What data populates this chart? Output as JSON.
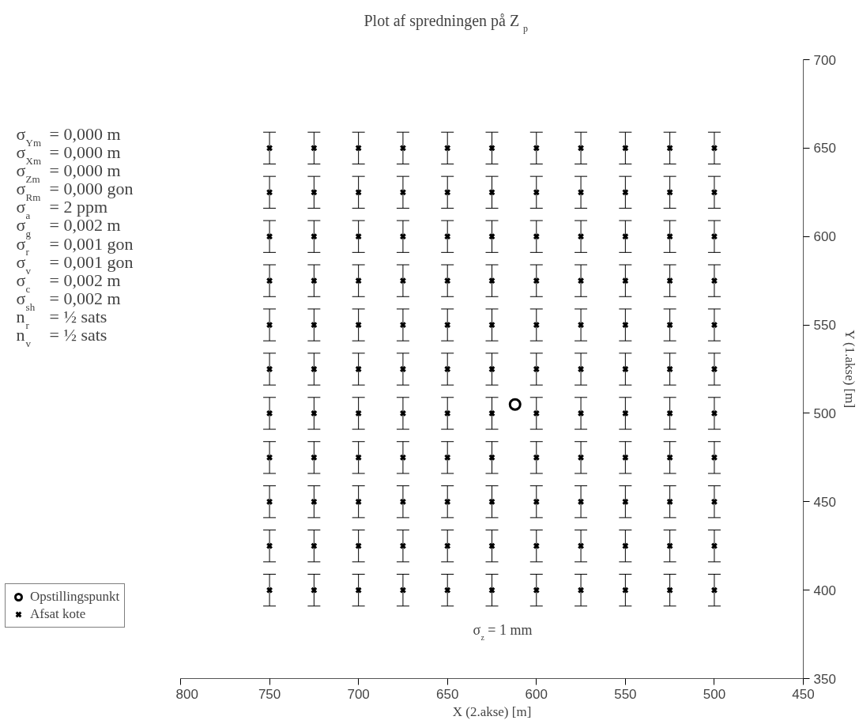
{
  "chart_data": {
    "type": "scatter",
    "title": "Plot af spredningen på Z$_{p}$",
    "xlabel": "X (2.akse) [m]",
    "ylabel": "Y (1.akse) [m]",
    "xlim": [
      800,
      450
    ],
    "xticks": [
      800,
      750,
      700,
      650,
      600,
      550,
      500,
      450
    ],
    "ylim": [
      350,
      700
    ],
    "yticks": [
      350,
      400,
      450,
      500,
      550,
      600,
      650,
      700
    ],
    "grid": false,
    "legend": "bottom left",
    "annotations": [
      "σ$_{Ym}$ = 0,000 m",
      "σ$_{Xm}$ = 0,000 m",
      "σ$_{Zm}$ = 0,000 m",
      "σ$_{Rm}$ = 0,000 gon",
      "σ$_{a}$ = 2 ppm",
      "σ$_{g}$ = 0,002 m",
      "σ$_{r}$ = 0,001 gon",
      "σ$_{v}$ = 0,001 gon",
      "σ$_{c}$ = 0,002 m",
      "σ$_{sh}$ = 0,002 m",
      "n$_{r}$ = ½ sats",
      "n$_{v}$ = ½ sats",
      "σ$_{z}$ = 1 mm"
    ],
    "series": [
      {
        "name": "Opstillingspunkt",
        "color": "#000000",
        "marker": "circle",
        "x": [
          612
        ],
        "values": [
          505
        ]
      },
      {
        "name": "Afsat kote",
        "color": "#000000",
        "marker": "cross",
        "x": [
          750,
          725,
          700,
          675,
          650,
          625,
          600,
          575,
          550,
          525,
          500,
          750,
          725,
          700,
          675,
          650,
          625,
          600,
          575,
          550,
          525,
          500,
          750,
          725,
          700,
          675,
          650,
          625,
          600,
          575,
          550,
          525,
          500,
          750,
          725,
          700,
          675,
          650,
          625,
          600,
          575,
          550,
          525,
          500,
          750,
          725,
          700,
          675,
          650,
          625,
          600,
          575,
          550,
          525,
          500,
          750,
          725,
          700,
          675,
          650,
          625,
          600,
          575,
          550,
          525,
          500,
          750,
          725,
          700,
          675,
          650,
          625,
          600,
          575,
          550,
          525,
          500,
          750,
          725,
          700,
          675,
          650,
          625,
          600,
          575,
          550,
          525,
          500,
          750,
          725,
          700,
          675,
          650,
          625,
          600,
          575,
          550,
          525,
          500,
          750,
          725,
          700,
          675,
          650,
          625,
          600,
          575,
          550,
          525,
          500,
          750,
          725,
          700,
          675,
          650,
          625,
          600,
          575,
          550,
          525,
          500
        ],
        "values": [
          650,
          650,
          650,
          650,
          650,
          650,
          650,
          650,
          650,
          650,
          650,
          625,
          625,
          625,
          625,
          625,
          625,
          625,
          625,
          625,
          625,
          625,
          600,
          600,
          600,
          600,
          600,
          600,
          600,
          600,
          600,
          600,
          600,
          575,
          575,
          575,
          575,
          575,
          575,
          575,
          575,
          575,
          575,
          575,
          550,
          550,
          550,
          550,
          550,
          550,
          550,
          550,
          550,
          550,
          550,
          525,
          525,
          525,
          525,
          525,
          525,
          525,
          525,
          525,
          525,
          525,
          500,
          500,
          500,
          500,
          500,
          500,
          500,
          500,
          500,
          500,
          500,
          475,
          475,
          475,
          475,
          475,
          475,
          475,
          475,
          475,
          475,
          475,
          450,
          450,
          450,
          450,
          450,
          450,
          450,
          450,
          450,
          450,
          450,
          425,
          425,
          425,
          425,
          425,
          425,
          425,
          425,
          425,
          425,
          425,
          400,
          400,
          400,
          400,
          400,
          400,
          400,
          400,
          400,
          400,
          400
        ],
        "errors": [
          9,
          9,
          9,
          9,
          9,
          9,
          9,
          9,
          9,
          9,
          9,
          9,
          9,
          9,
          9,
          9,
          9,
          9,
          9,
          9,
          9,
          9,
          9,
          9,
          9,
          9,
          9,
          9,
          9,
          9,
          9,
          9,
          9,
          9,
          9,
          9,
          9,
          9,
          9,
          9,
          9,
          9,
          9,
          9,
          9,
          9,
          9,
          9,
          9,
          9,
          9,
          9,
          9,
          9,
          9,
          9,
          9,
          9,
          9,
          9,
          9,
          9,
          9,
          9,
          9,
          9,
          9,
          9,
          9,
          9,
          9,
          9,
          9,
          9,
          9,
          9,
          9,
          9,
          9,
          9,
          9,
          9,
          9,
          9,
          9,
          9,
          9,
          9,
          9,
          9,
          9,
          9,
          9,
          9,
          9,
          9,
          9,
          9,
          9,
          9,
          9,
          9,
          9,
          9,
          9,
          9,
          9,
          9,
          9,
          9,
          9,
          9,
          9,
          9,
          9,
          9,
          9,
          9,
          9,
          9,
          9
        ]
      }
    ]
  }
}
